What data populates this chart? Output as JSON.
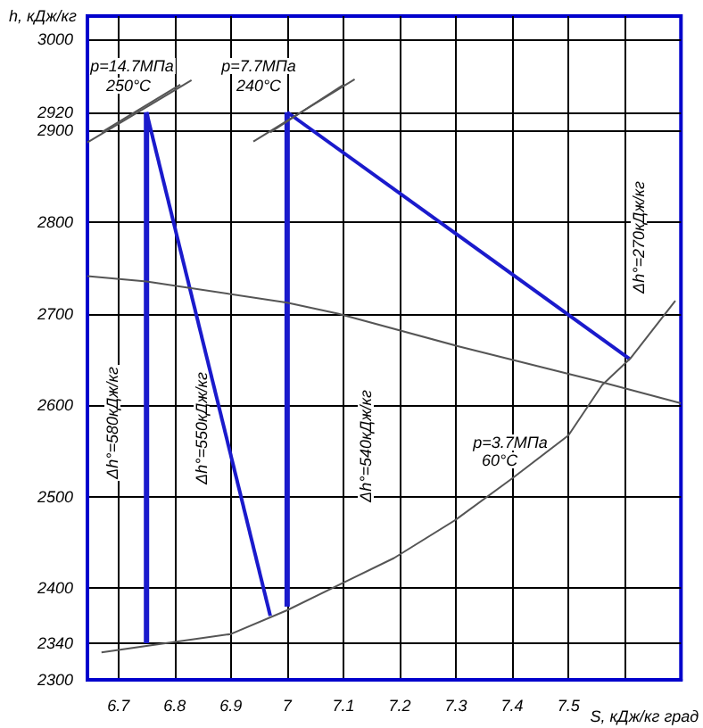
{
  "chart_data": {
    "type": "line",
    "xlabel": "S, кДж/кг град",
    "ylabel": "h, кДж/кг",
    "xlim": [
      6.645,
      7.7
    ],
    "xticks": [
      6.7,
      6.8,
      6.9,
      7.0,
      7.1,
      7.2,
      7.3,
      7.4,
      7.5,
      {
        "value": 7.6,
        "label": null
      }
    ],
    "ylim": [
      2300,
      3025
    ],
    "yticks": [
      2300,
      2340,
      2400,
      2500,
      2600,
      2700,
      2800,
      2900,
      2920,
      3000
    ],
    "grid": true,
    "marker": "none",
    "line_style": "solid",
    "series": [
      {
        "color": "#1a1acc",
        "x": [
          6.75,
          6.75
        ],
        "values": [
          2920,
          2340
        ]
      },
      {
        "color": "#1a1acc",
        "x": [
          6.75,
          6.97
        ],
        "values": [
          2920,
          2370
        ]
      },
      {
        "color": "#1a1acc",
        "x": [
          7.0,
          7.0
        ],
        "values": [
          2920,
          2380
        ]
      },
      {
        "color": "#1a1acc",
        "x": [
          7.0,
          7.61
        ],
        "values": [
          2920,
          2650
        ]
      },
      {
        "color": "#555555",
        "x": [
          6.645,
          6.75,
          7.0,
          7.09,
          7.3,
          7.56,
          7.7
        ],
        "values": [
          2741,
          2735,
          2712,
          2700,
          2665,
          2625,
          2602
        ]
      },
      {
        "color": "#555555",
        "x": [
          6.67,
          6.75,
          6.9,
          7.0,
          7.1,
          7.19,
          7.3,
          7.4,
          7.5,
          7.56,
          7.61,
          7.69
        ],
        "values": [
          2330,
          2337,
          2350,
          2376,
          2406,
          2433,
          2475,
          2520,
          2567,
          2622,
          2651,
          2714
        ]
      },
      {
        "color": "#555555",
        "x": [
          6.645,
          6.83
        ],
        "values": [
          2887,
          2955
        ]
      },
      {
        "color": "#555555",
        "x": [
          6.67,
          6.81
        ],
        "values": [
          2898,
          2950
        ]
      },
      {
        "color": "#555555",
        "x": [
          6.94,
          7.12
        ],
        "values": [
          2888,
          2956
        ]
      },
      {
        "color": "#555555",
        "x": [
          6.97,
          7.1
        ],
        "values": [
          2898,
          2950
        ]
      }
    ],
    "annotations": [
      "p=14.7МПа",
      "250°С",
      "p=7.7МПа",
      "240°С",
      "p=3.7МПа",
      "60°С",
      "Δh°=580кДж/кг",
      "Δh°=550кДж/кг",
      "Δh°=540кДж/кг",
      "Δh°=270кДж/кг"
    ]
  }
}
